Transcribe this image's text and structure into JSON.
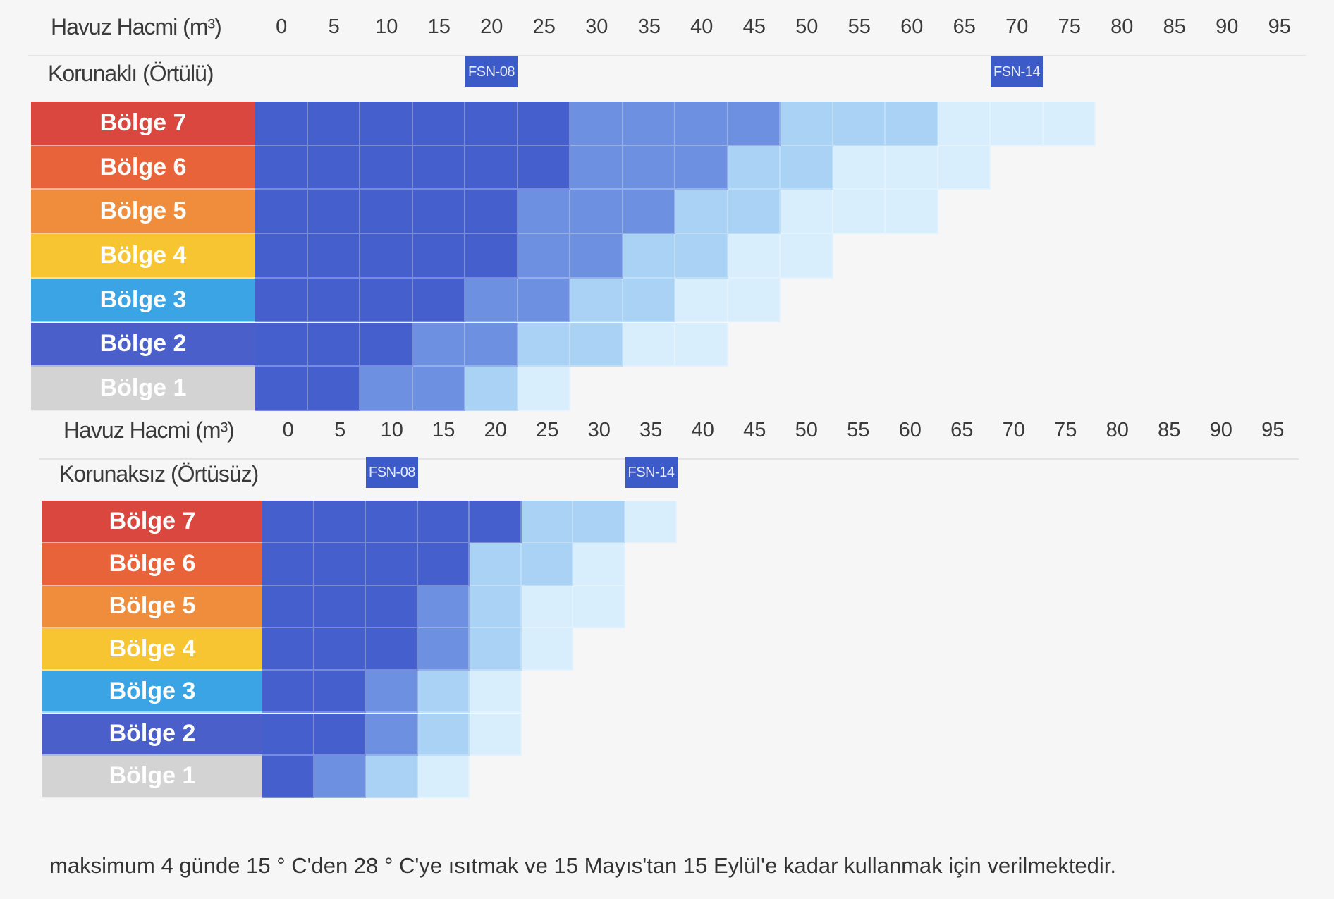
{
  "chart_data": [
    {
      "type": "heatmap",
      "title": "Korunaklı (Örtülü)",
      "xlabel": "Havuz Hacmi (m³)",
      "x": [
        0,
        5,
        10,
        15,
        20,
        25,
        30,
        35,
        40,
        45,
        50,
        55,
        60,
        65,
        70,
        75,
        80,
        85,
        90,
        95
      ],
      "rows": [
        "Bölge 7",
        "Bölge 6",
        "Bölge 5",
        "Bölge 4",
        "Bölge 3",
        "Bölge 2",
        "Bölge 1"
      ],
      "models": [
        {
          "name": "FSN-08",
          "x": 20
        },
        {
          "name": "FSN-14",
          "x": 70
        }
      ],
      "levels": [
        [
          3,
          3,
          3,
          3,
          3,
          3,
          2,
          2,
          2,
          2,
          1,
          1,
          1,
          0,
          0,
          0,
          -1,
          -1,
          -1,
          -1
        ],
        [
          3,
          3,
          3,
          3,
          3,
          3,
          2,
          2,
          2,
          1,
          1,
          0,
          0,
          0,
          -1,
          -1,
          -1,
          -1,
          -1,
          -1
        ],
        [
          3,
          3,
          3,
          3,
          3,
          2,
          2,
          2,
          1,
          1,
          0,
          0,
          0,
          -1,
          -1,
          -1,
          -1,
          -1,
          -1,
          -1
        ],
        [
          3,
          3,
          3,
          3,
          3,
          2,
          2,
          1,
          1,
          0,
          0,
          -1,
          -1,
          -1,
          -1,
          -1,
          -1,
          -1,
          -1,
          -1
        ],
        [
          3,
          3,
          3,
          3,
          2,
          2,
          1,
          1,
          0,
          0,
          -1,
          -1,
          -1,
          -1,
          -1,
          -1,
          -1,
          -1,
          -1,
          -1
        ],
        [
          3,
          3,
          3,
          2,
          2,
          1,
          1,
          0,
          0,
          -1,
          -1,
          -1,
          -1,
          -1,
          -1,
          -1,
          -1,
          -1,
          -1,
          -1
        ],
        [
          3,
          3,
          2,
          2,
          1,
          0,
          -1,
          -1,
          -1,
          -1,
          -1,
          -1,
          -1,
          -1,
          -1,
          -1,
          -1,
          -1,
          -1,
          -1
        ]
      ]
    },
    {
      "type": "heatmap",
      "title": "Korunaksız (Örtüsüz)",
      "xlabel": "Havuz Hacmi (m³)",
      "x": [
        0,
        5,
        10,
        15,
        20,
        25,
        30,
        35,
        40,
        45,
        50,
        55,
        60,
        65,
        70,
        75,
        80,
        85,
        90,
        95
      ],
      "rows": [
        "Bölge 7",
        "Bölge 6",
        "Bölge 5",
        "Bölge 4",
        "Bölge 3",
        "Bölge 2",
        "Bölge 1"
      ],
      "models": [
        {
          "name": "FSN-08",
          "x": 10
        },
        {
          "name": "FSN-14",
          "x": 35
        }
      ],
      "levels": [
        [
          3,
          3,
          3,
          3,
          3,
          1,
          1,
          0,
          -1,
          -1,
          -1,
          -1,
          -1,
          -1,
          -1,
          -1,
          -1,
          -1,
          -1,
          -1
        ],
        [
          3,
          3,
          3,
          3,
          1,
          1,
          0,
          -1,
          -1,
          -1,
          -1,
          -1,
          -1,
          -1,
          -1,
          -1,
          -1,
          -1,
          -1,
          -1
        ],
        [
          3,
          3,
          3,
          2,
          1,
          0,
          0,
          -1,
          -1,
          -1,
          -1,
          -1,
          -1,
          -1,
          -1,
          -1,
          -1,
          -1,
          -1,
          -1
        ],
        [
          3,
          3,
          3,
          2,
          1,
          0,
          -1,
          -1,
          -1,
          -1,
          -1,
          -1,
          -1,
          -1,
          -1,
          -1,
          -1,
          -1,
          -1,
          -1
        ],
        [
          3,
          3,
          2,
          1,
          0,
          -1,
          -1,
          -1,
          -1,
          -1,
          -1,
          -1,
          -1,
          -1,
          -1,
          -1,
          -1,
          -1,
          -1,
          -1
        ],
        [
          3,
          3,
          2,
          1,
          0,
          -1,
          -1,
          -1,
          -1,
          -1,
          -1,
          -1,
          -1,
          -1,
          -1,
          -1,
          -1,
          -1,
          -1,
          -1
        ],
        [
          3,
          2,
          1,
          0,
          -1,
          -1,
          -1,
          -1,
          -1,
          -1,
          -1,
          -1,
          -1,
          -1,
          -1,
          -1,
          -1,
          -1,
          -1,
          -1
        ]
      ]
    }
  ],
  "level_colors": [
    "#d9eefc",
    "#a9d2f4",
    "#6d91e0",
    "#4560cc"
  ],
  "region_colors": [
    "#d9473f",
    "#e8633a",
    "#ef8d3c",
    "#f7c532",
    "#3aa4e4",
    "#4a5fc9",
    "#d3d3d3"
  ],
  "footnote": "maksimum 4 günde 15 ° C'den 28 ° C'ye ısıtmak ve 15 Mayıs'tan 15 Eylül'e kadar kullanmak için verilmektedir."
}
